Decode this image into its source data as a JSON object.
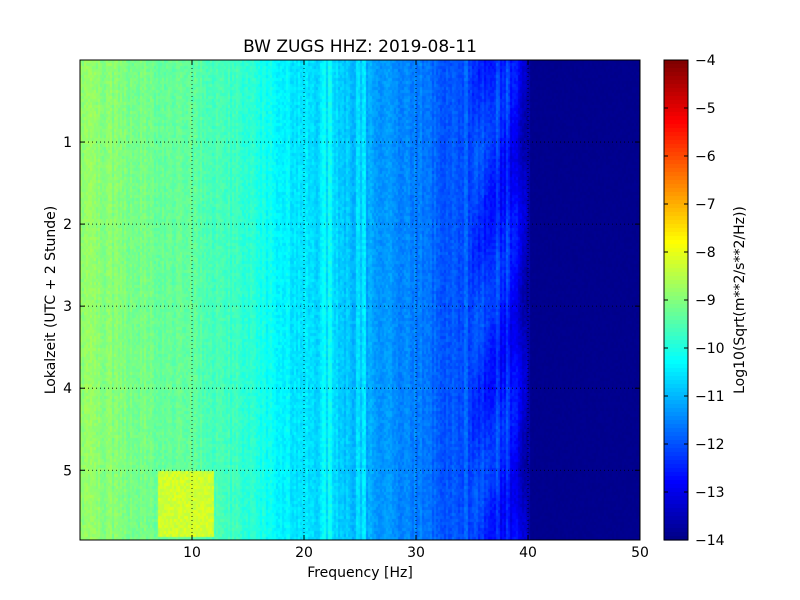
{
  "chart_data": {
    "type": "heatmap",
    "title": "BW ZUGS HHZ: 2019-08-11",
    "xlabel": "Frequency [Hz]",
    "ylabel": "Lokalzeit (UTC + 2 Stunde)",
    "xlim": [
      0,
      50
    ],
    "ylim": [
      5.85,
      0
    ],
    "x_ticks": [
      10,
      20,
      30,
      40,
      50
    ],
    "y_ticks": [
      1,
      2,
      3,
      4,
      5
    ],
    "grid": true,
    "colormap": "jet",
    "colorbar": {
      "label": "Log10(Sqrt(m**2/s**2/Hz))",
      "range": [
        -14,
        -4
      ],
      "ticks": [
        -4,
        -5,
        -6,
        -7,
        -8,
        -9,
        -10,
        -11,
        -12,
        -13,
        -14
      ]
    },
    "spectrum_profile": {
      "frequency_hz": [
        0,
        2,
        4,
        6,
        8,
        10,
        12,
        14,
        16,
        18,
        20,
        22,
        24,
        26,
        28,
        30,
        32,
        34,
        36,
        37,
        38,
        39,
        40,
        41,
        45,
        50
      ],
      "level_log10": [
        -8.8,
        -8.9,
        -9.0,
        -9.1,
        -9.2,
        -9.3,
        -9.5,
        -9.7,
        -10.0,
        -10.3,
        -10.5,
        -10.6,
        -10.8,
        -11.1,
        -11.3,
        -11.5,
        -11.8,
        -12.0,
        -12.2,
        -12.4,
        -12.6,
        -12.8,
        -13.7,
        -13.9,
        -13.9,
        -13.9
      ]
    },
    "line_features_hz": [
      21.8,
      22.3,
      24.8,
      25.3,
      34.4,
      37.4,
      38.3
    ],
    "hot_patch": {
      "frequency_hz": [
        7,
        12
      ],
      "time_h": [
        5.0,
        5.8
      ],
      "level_log10": -8.2
    }
  }
}
